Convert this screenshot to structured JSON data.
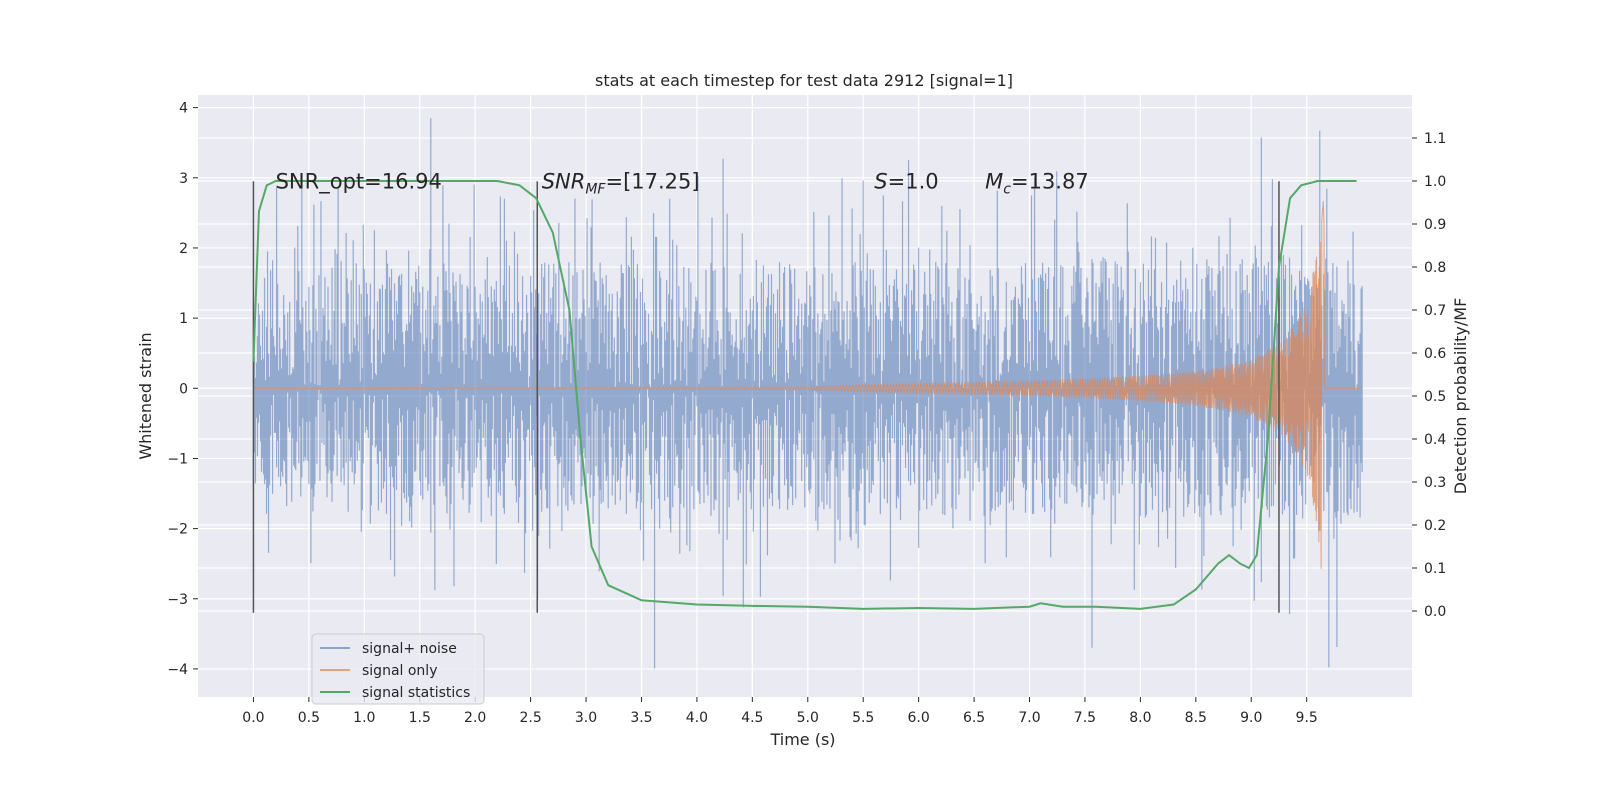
{
  "chart_data": {
    "type": "line",
    "title": "stats at each timestep for test data 2912 [signal=1]",
    "xlabel": "Time (s)",
    "ylabel": "Whitened strain",
    "ylabel_right": "Detection probability/MF",
    "xlim": [
      -0.5,
      10.45
    ],
    "ylim": [
      -4.4,
      4.18
    ],
    "ylim_right": [
      -0.2,
      1.2
    ],
    "x_ticks": [
      "0.0",
      "0.5",
      "1.0",
      "1.5",
      "2.0",
      "2.5",
      "3.0",
      "3.5",
      "4.0",
      "4.5",
      "5.0",
      "5.5",
      "6.0",
      "6.5",
      "7.0",
      "7.5",
      "8.0",
      "8.5",
      "9.0",
      "9.5"
    ],
    "y_ticks": [
      "−4",
      "−3",
      "−2",
      "−1",
      "0",
      "1",
      "2",
      "3",
      "4"
    ],
    "y_ticks_right": [
      "0.0",
      "0.1",
      "0.2",
      "0.3",
      "0.4",
      "0.5",
      "0.6",
      "0.7",
      "0.8",
      "0.9",
      "1.0",
      "1.1"
    ],
    "grid": true,
    "legend_position": "lower-left",
    "series": [
      {
        "name": "signal+ noise",
        "color": "#4c72b0",
        "description_of_values": "noise dominated strain, approx ±1.5 std band with spikes up to ±3.8",
        "x_range": [
          0,
          10
        ],
        "envelope": [
          [
            0,
            -1.5,
            1.3
          ],
          [
            0.5,
            -1.8,
            1.8
          ],
          [
            2.5,
            -1.8,
            1.8
          ],
          [
            5,
            -1.8,
            1.8
          ],
          [
            7.5,
            -1.8,
            1.8
          ],
          [
            9.5,
            -1.9,
            1.9
          ],
          [
            10,
            -1.9,
            1.8
          ]
        ]
      },
      {
        "name": "signal only",
        "color": "#dd8452",
        "description_of_values": "chirp amplitude grows toward merger at ~9.65 s",
        "amplitude": [
          [
            0,
            0.0
          ],
          [
            5,
            0.02
          ],
          [
            5.5,
            0.05
          ],
          [
            6,
            0.07
          ],
          [
            6.5,
            0.09
          ],
          [
            7,
            0.11
          ],
          [
            7.5,
            0.14
          ],
          [
            8,
            0.18
          ],
          [
            8.5,
            0.25
          ],
          [
            9,
            0.4
          ],
          [
            9.3,
            0.7
          ],
          [
            9.5,
            1.2
          ],
          [
            9.6,
            2.0
          ],
          [
            9.65,
            3.0
          ],
          [
            9.7,
            0.0
          ],
          [
            10,
            0.0
          ]
        ]
      },
      {
        "name": "signal statistics",
        "color": "#55a868",
        "axis": "right",
        "points": [
          [
            0.0,
            0.58
          ],
          [
            0.05,
            0.93
          ],
          [
            0.12,
            0.99
          ],
          [
            0.2,
            1.0
          ],
          [
            2.2,
            1.0
          ],
          [
            2.4,
            0.99
          ],
          [
            2.55,
            0.96
          ],
          [
            2.7,
            0.88
          ],
          [
            2.85,
            0.7
          ],
          [
            2.95,
            0.4
          ],
          [
            3.05,
            0.15
          ],
          [
            3.2,
            0.06
          ],
          [
            3.5,
            0.025
          ],
          [
            4.0,
            0.015
          ],
          [
            4.5,
            0.012
          ],
          [
            5.0,
            0.01
          ],
          [
            5.5,
            0.005
          ],
          [
            6.0,
            0.007
          ],
          [
            6.5,
            0.005
          ],
          [
            7.0,
            0.01
          ],
          [
            7.1,
            0.018
          ],
          [
            7.3,
            0.01
          ],
          [
            7.6,
            0.01
          ],
          [
            8.0,
            0.005
          ],
          [
            8.3,
            0.015
          ],
          [
            8.5,
            0.05
          ],
          [
            8.7,
            0.11
          ],
          [
            8.8,
            0.13
          ],
          [
            8.9,
            0.11
          ],
          [
            8.98,
            0.1
          ],
          [
            9.05,
            0.13
          ],
          [
            9.15,
            0.4
          ],
          [
            9.25,
            0.8
          ],
          [
            9.35,
            0.96
          ],
          [
            9.45,
            0.99
          ],
          [
            9.6,
            1.0
          ],
          [
            9.95,
            1.0
          ]
        ]
      }
    ],
    "vertical_markers_x": [
      0.0,
      2.56,
      9.25
    ],
    "annotations": [
      {
        "text": "SNR_opt=16.94",
        "x": 0.2,
        "y": 2.85
      },
      {
        "main": "SNR",
        "sub": "MF",
        "rest": "=[17.25]",
        "x": 2.6,
        "y": 2.85
      },
      {
        "main": "S",
        "sub": "",
        "rest": "=1.0",
        "x": 5.6,
        "y": 2.85
      },
      {
        "main": "M",
        "sub": "c",
        "rest": "=13.87",
        "x": 6.6,
        "y": 2.85
      }
    ]
  }
}
